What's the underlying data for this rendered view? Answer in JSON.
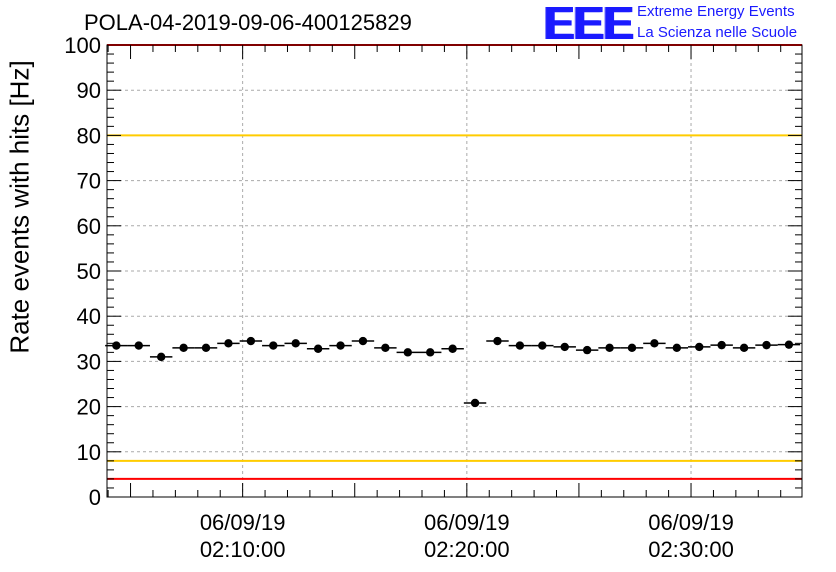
{
  "header": {
    "title": "POLA-04-2019-09-06-400125829",
    "logo": {
      "mark": "EEE",
      "line1": "Extreme Energy Events",
      "line2": "La Scienza nelle Scuole",
      "color": "#1a1aff"
    }
  },
  "chart_data": {
    "type": "scatter",
    "title": "POLA-04-2019-09-06-400125829",
    "xlabel": "",
    "ylabel": "Rate events with hits [Hz]",
    "ylim": [
      0,
      100
    ],
    "yticks": [
      0,
      10,
      20,
      30,
      40,
      50,
      60,
      70,
      80,
      90,
      100
    ],
    "xlim": [
      "2019-09-06 02:03:57",
      "2019-09-06 02:34:57"
    ],
    "xticks": [
      {
        "date": "06/09/19",
        "time": "02:10:00",
        "value": "2019-09-06 02:10:00"
      },
      {
        "date": "06/09/19",
        "time": "02:20:00",
        "value": "2019-09-06 02:20:00"
      },
      {
        "date": "06/09/19",
        "time": "02:30:00",
        "value": "2019-09-06 02:30:00"
      }
    ],
    "grid": true,
    "series": [
      {
        "marker": "circle",
        "color": "#000000",
        "x": [
          "02:04:22",
          "02:05:22",
          "02:06:22",
          "02:07:22",
          "02:08:22",
          "02:09:22",
          "02:10:22",
          "02:11:22",
          "02:12:22",
          "02:13:22",
          "02:14:22",
          "02:15:22",
          "02:16:22",
          "02:17:22",
          "02:18:22",
          "02:19:22",
          "02:20:22",
          "02:21:22",
          "02:22:22",
          "02:23:22",
          "02:24:22",
          "02:25:22",
          "02:26:22",
          "02:27:22",
          "02:28:22",
          "02:29:22",
          "02:30:22",
          "02:31:22",
          "02:32:22",
          "02:33:22",
          "02:34:22"
        ],
        "y": [
          33.5,
          33.5,
          31.0,
          33.0,
          33.0,
          34.0,
          34.5,
          33.5,
          34.0,
          32.8,
          33.5,
          34.5,
          33.0,
          32.0,
          32.0,
          32.8,
          20.8,
          34.5,
          33.5,
          33.5,
          33.2,
          32.5,
          33.0,
          33.0,
          34.0,
          33.0,
          33.2,
          33.6,
          33.0,
          33.6,
          33.7
        ],
        "bin_width_seconds": 60
      }
    ],
    "reference_lines": [
      {
        "y": 100,
        "color": "#ff0000"
      },
      {
        "y": 80,
        "color": "#ffcc00"
      },
      {
        "y": 8,
        "color": "#ffcc00"
      },
      {
        "y": 4,
        "color": "#ff0000"
      }
    ]
  }
}
